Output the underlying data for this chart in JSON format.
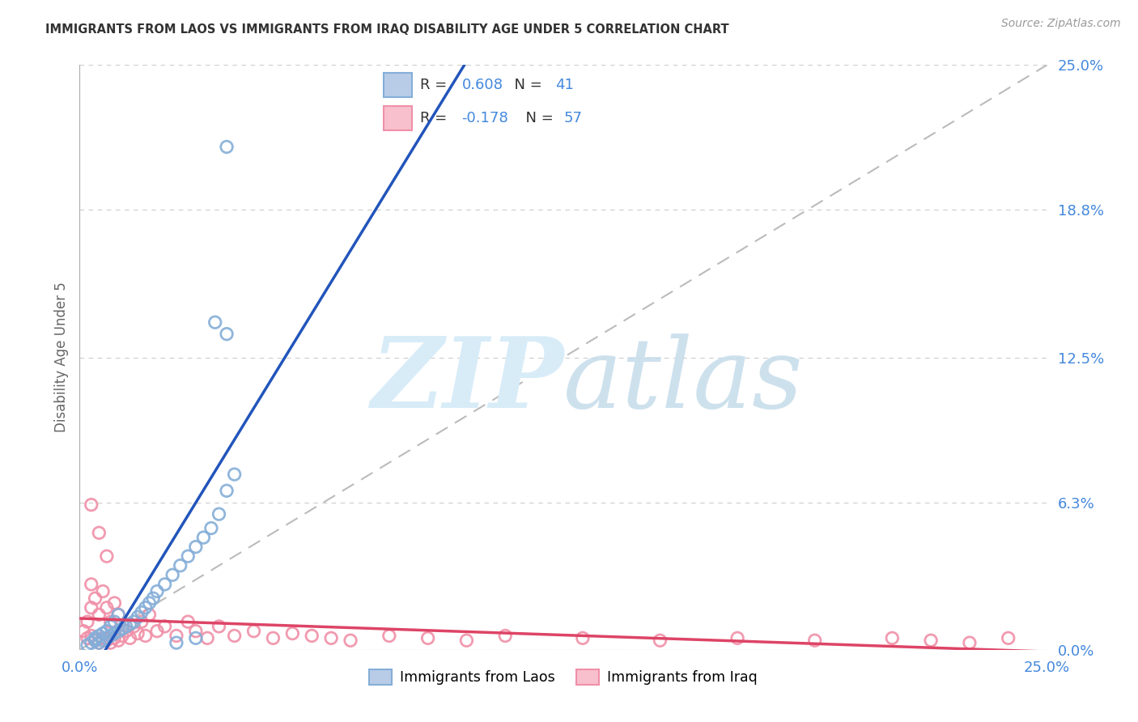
{
  "title": "IMMIGRANTS FROM LAOS VS IMMIGRANTS FROM IRAQ DISABILITY AGE UNDER 5 CORRELATION CHART",
  "source": "Source: ZipAtlas.com",
  "ylabel": "Disability Age Under 5",
  "xlim": [
    0.0,
    0.25
  ],
  "ylim": [
    0.0,
    0.25
  ],
  "ytick_labels_right": [
    "0.0%",
    "6.3%",
    "12.5%",
    "18.8%",
    "25.0%"
  ],
  "ytick_vals_right": [
    0.0,
    0.063,
    0.125,
    0.188,
    0.25
  ],
  "laos_R": 0.608,
  "laos_N": 41,
  "iraq_R": -0.178,
  "iraq_N": 57,
  "laos_scatter_color": "#85aed8",
  "laos_fill_color": "#b8cce8",
  "iraq_scatter_color": "#f090a8",
  "iraq_fill_color": "#f8c0cc",
  "laos_line_color": "#2255bb",
  "iraq_line_color": "#dd4466",
  "diag_line_color": "#bbbbbb",
  "grid_color": "#cccccc",
  "legend_laos": "Immigrants from Laos",
  "legend_iraq": "Immigrants from Iraq",
  "axis_label_color": "#4488dd",
  "title_color": "#333333",
  "source_color": "#999999",
  "ylabel_color": "#666666",
  "background": "#ffffff",
  "laos_x": [
    0.002,
    0.003,
    0.004,
    0.004,
    0.005,
    0.005,
    0.006,
    0.006,
    0.007,
    0.007,
    0.008,
    0.008,
    0.009,
    0.009,
    0.01,
    0.01,
    0.011,
    0.012,
    0.013,
    0.014,
    0.015,
    0.016,
    0.017,
    0.018,
    0.019,
    0.02,
    0.022,
    0.024,
    0.026,
    0.028,
    0.03,
    0.032,
    0.034,
    0.036,
    0.038,
    0.04,
    0.038,
    0.035,
    0.03,
    0.025,
    0.038
  ],
  "laos_y": [
    0.002,
    0.003,
    0.004,
    0.005,
    0.003,
    0.006,
    0.004,
    0.007,
    0.005,
    0.008,
    0.006,
    0.01,
    0.007,
    0.012,
    0.008,
    0.015,
    0.009,
    0.01,
    0.011,
    0.012,
    0.014,
    0.016,
    0.018,
    0.02,
    0.022,
    0.025,
    0.028,
    0.032,
    0.036,
    0.04,
    0.044,
    0.048,
    0.052,
    0.058,
    0.068,
    0.075,
    0.135,
    0.14,
    0.005,
    0.003,
    0.215
  ],
  "iraq_x": [
    0.001,
    0.002,
    0.002,
    0.003,
    0.003,
    0.004,
    0.004,
    0.005,
    0.005,
    0.006,
    0.006,
    0.007,
    0.007,
    0.008,
    0.008,
    0.009,
    0.009,
    0.01,
    0.01,
    0.011,
    0.012,
    0.013,
    0.014,
    0.015,
    0.016,
    0.017,
    0.018,
    0.02,
    0.022,
    0.025,
    0.028,
    0.03,
    0.033,
    0.036,
    0.04,
    0.045,
    0.05,
    0.055,
    0.06,
    0.065,
    0.07,
    0.08,
    0.09,
    0.1,
    0.11,
    0.13,
    0.15,
    0.17,
    0.19,
    0.21,
    0.22,
    0.23,
    0.24,
    0.003,
    0.005,
    0.007,
    0.003
  ],
  "iraq_y": [
    0.008,
    0.005,
    0.012,
    0.006,
    0.018,
    0.004,
    0.022,
    0.003,
    0.015,
    0.005,
    0.025,
    0.004,
    0.018,
    0.003,
    0.012,
    0.005,
    0.02,
    0.004,
    0.015,
    0.006,
    0.008,
    0.005,
    0.01,
    0.007,
    0.012,
    0.006,
    0.015,
    0.008,
    0.01,
    0.006,
    0.012,
    0.008,
    0.005,
    0.01,
    0.006,
    0.008,
    0.005,
    0.007,
    0.006,
    0.005,
    0.004,
    0.006,
    0.005,
    0.004,
    0.006,
    0.005,
    0.004,
    0.005,
    0.004,
    0.005,
    0.004,
    0.003,
    0.005,
    0.062,
    0.05,
    0.04,
    0.028
  ]
}
